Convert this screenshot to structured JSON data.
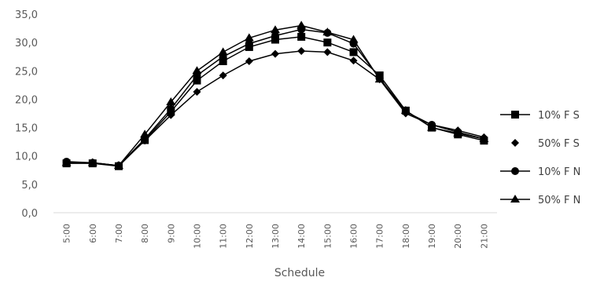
{
  "chart_data": {
    "type": "line",
    "xlabel": "Schedule",
    "ylabel": "",
    "ylim": [
      0,
      35
    ],
    "y_ticks": [
      "0,0",
      "5,0",
      "10,0",
      "15,0",
      "20,0",
      "25,0",
      "30,0",
      "35,0"
    ],
    "categories": [
      "5:00",
      "6:00",
      "7:00",
      "8:00",
      "9:00",
      "10:00",
      "11:00",
      "12:00",
      "13:00",
      "14:00",
      "15:00",
      "16:00",
      "17:00",
      "18:00",
      "19:00",
      "20:00",
      "21:00"
    ],
    "grid": false,
    "legend_position": "right",
    "series": [
      {
        "name": "10% F S",
        "marker": "square",
        "color": "#000000",
        "values": [
          8.7,
          8.7,
          8.2,
          12.8,
          17.8,
          23.3,
          26.7,
          29.2,
          30.5,
          31.0,
          30.0,
          28.3,
          24.2,
          18.0,
          15.0,
          13.8,
          12.7
        ]
      },
      {
        "name": "50% F S",
        "marker": "diamond",
        "color": "#000000",
        "values": [
          8.8,
          8.8,
          8.3,
          12.7,
          17.2,
          21.3,
          24.2,
          26.7,
          28.0,
          28.5,
          28.3,
          26.8,
          23.5,
          17.5,
          15.5,
          14.5,
          13.3
        ]
      },
      {
        "name": "10% F N",
        "marker": "circle",
        "color": "#000000",
        "values": [
          9.0,
          8.8,
          8.3,
          13.0,
          18.3,
          24.2,
          27.5,
          29.8,
          31.2,
          32.3,
          31.7,
          29.8,
          23.7,
          17.8,
          15.5,
          14.2,
          13.0
        ]
      },
      {
        "name": "50% F N",
        "marker": "triangle",
        "color": "#000000",
        "values": [
          8.8,
          8.8,
          8.3,
          13.8,
          19.5,
          25.0,
          28.3,
          30.8,
          32.2,
          33.0,
          31.8,
          30.5,
          23.5,
          18.0,
          15.0,
          14.0,
          13.0
        ]
      }
    ]
  }
}
